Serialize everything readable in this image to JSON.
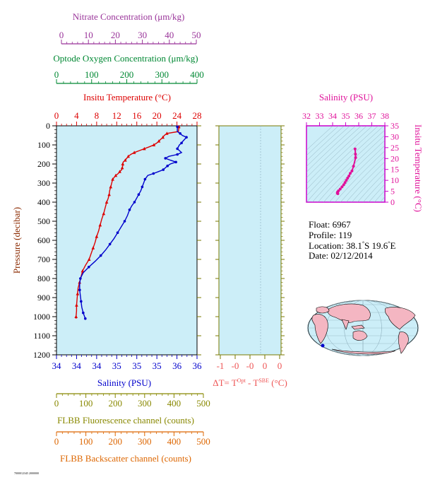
{
  "colors": {
    "nitrate": "#993399",
    "oxygen": "#008833",
    "temperature": "#dd0000",
    "salinity": "#0000cc",
    "ts": "#e0119a",
    "delta": "#ee5555",
    "fluorescence": "#888800",
    "backscatter": "#dd6600",
    "plot_bg": "#cceef8",
    "frame_olive": "#7a7a00"
  },
  "axes": {
    "nitrate": {
      "label": "Nitrate Concentration (μm/kg)",
      "ticks": [
        "0",
        "10",
        "20",
        "30",
        "40",
        "50"
      ],
      "range": [
        0,
        50
      ]
    },
    "oxygen": {
      "label": "Optode Oxygen Concentration (μm/kg)",
      "ticks": [
        "0",
        "100",
        "200",
        "300",
        "400"
      ],
      "range": [
        0,
        400
      ]
    },
    "temperature": {
      "label": "Insitu Temperature (°C)",
      "ticks": [
        "0",
        "4",
        "8",
        "12",
        "16",
        "20",
        "24",
        "28"
      ],
      "range": [
        0,
        28
      ]
    },
    "pressure": {
      "label": "Pressure (decibar)",
      "ticks": [
        "0",
        "100",
        "200",
        "300",
        "400",
        "500",
        "600",
        "700",
        "800",
        "900",
        "1000",
        "1100",
        "1200"
      ],
      "range": [
        0,
        1200
      ]
    },
    "salinity": {
      "label": "Salinity (PSU)",
      "ticks": [
        "34",
        "34",
        "34",
        "35",
        "35",
        "35",
        "36",
        "36"
      ],
      "range": [
        34,
        36
      ]
    },
    "delta": {
      "label_prefix": "ΔT= T",
      "label_sup1": "Opt",
      "label_mid": " - T",
      "label_sup2": "SBE",
      "label_suffix": " (°C)",
      "ticks": [
        "-1",
        "-0",
        "-0",
        "0",
        "0"
      ],
      "range": [
        -1,
        0.1
      ]
    },
    "fluorescence": {
      "label": "FLBB Fluorescence channel (counts)",
      "ticks": [
        "0",
        "100",
        "200",
        "300",
        "400",
        "500"
      ],
      "range": [
        0,
        500
      ]
    },
    "backscatter": {
      "label": "FLBB Backscatter channel (counts)",
      "ticks": [
        "0",
        "100",
        "200",
        "300",
        "400",
        "500"
      ],
      "range": [
        0,
        500
      ]
    },
    "ts_salinity": {
      "label": "Salinity (PSU)",
      "ticks": [
        "32",
        "33",
        "34",
        "35",
        "36",
        "37",
        "38"
      ],
      "range": [
        32,
        38
      ]
    },
    "ts_temperature": {
      "label": "Insitu Temperature (°C)",
      "ticks": [
        "0",
        "5",
        "10",
        "15",
        "20",
        "25",
        "30",
        "35"
      ],
      "range": [
        0,
        35
      ]
    }
  },
  "info": {
    "float": "Float:  6967",
    "profile": "Profile:  119",
    "location_prefix": "Location:  38.1",
    "location_mid": "S  19.6",
    "location_suffix": "E",
    "date": "Date:  02/12/2014"
  },
  "footer_code": "7000012345 2000000",
  "chart_data": [
    {
      "type": "line",
      "name": "temperature-profile",
      "x_unit": "°C",
      "y_unit": "decibar",
      "points": [
        [
          24.4,
          5
        ],
        [
          24.3,
          30
        ],
        [
          22.0,
          40
        ],
        [
          21.5,
          50
        ],
        [
          21.2,
          60
        ],
        [
          20.8,
          70
        ],
        [
          20.4,
          80
        ],
        [
          20.0,
          90
        ],
        [
          19.4,
          100
        ],
        [
          18.5,
          110
        ],
        [
          17.5,
          120
        ],
        [
          16.5,
          130
        ],
        [
          15.5,
          140
        ],
        [
          14.8,
          150
        ],
        [
          14.3,
          160
        ],
        [
          14.0,
          170
        ],
        [
          13.7,
          180
        ],
        [
          13.3,
          190
        ],
        [
          13.2,
          200
        ],
        [
          13.2,
          210
        ],
        [
          13.1,
          220
        ],
        [
          13.0,
          230
        ],
        [
          12.6,
          240
        ],
        [
          12.3,
          250
        ],
        [
          11.8,
          260
        ],
        [
          11.5,
          270
        ],
        [
          11.2,
          280
        ],
        [
          11.0,
          300
        ],
        [
          10.8,
          320
        ],
        [
          10.6,
          340
        ],
        [
          10.5,
          360
        ],
        [
          10.3,
          380
        ],
        [
          10.0,
          400
        ],
        [
          9.7,
          430
        ],
        [
          9.4,
          460
        ],
        [
          9.0,
          490
        ],
        [
          8.7,
          520
        ],
        [
          8.4,
          550
        ],
        [
          8.0,
          580
        ],
        [
          7.7,
          610
        ],
        [
          7.3,
          640
        ],
        [
          6.9,
          670
        ],
        [
          6.5,
          700
        ],
        [
          5.8,
          730
        ],
        [
          5.2,
          760
        ],
        [
          4.9,
          790
        ],
        [
          4.6,
          820
        ],
        [
          4.3,
          850
        ],
        [
          4.2,
          880
        ],
        [
          4.1,
          910
        ],
        [
          4.0,
          940
        ],
        [
          4.0,
          970
        ],
        [
          3.9,
          1000
        ],
        [
          3.9,
          1010
        ]
      ]
    },
    {
      "type": "line",
      "name": "salinity-profile",
      "x_unit": "PSU",
      "y_unit": "decibar",
      "points": [
        [
          35.72,
          5
        ],
        [
          35.72,
          30
        ],
        [
          35.76,
          40
        ],
        [
          35.79,
          50
        ],
        [
          35.85,
          60
        ],
        [
          35.8,
          80
        ],
        [
          35.78,
          90
        ],
        [
          35.75,
          100
        ],
        [
          35.72,
          120
        ],
        [
          35.78,
          140
        ],
        [
          35.72,
          150
        ],
        [
          35.6,
          160
        ],
        [
          35.55,
          170
        ],
        [
          35.62,
          180
        ],
        [
          35.7,
          190
        ],
        [
          35.62,
          200
        ],
        [
          35.58,
          210
        ],
        [
          35.55,
          220
        ],
        [
          35.52,
          230
        ],
        [
          35.45,
          240
        ],
        [
          35.38,
          250
        ],
        [
          35.3,
          260
        ],
        [
          35.26,
          280
        ],
        [
          35.24,
          300
        ],
        [
          35.22,
          320
        ],
        [
          35.2,
          340
        ],
        [
          35.17,
          360
        ],
        [
          35.14,
          380
        ],
        [
          35.11,
          400
        ],
        [
          35.07,
          420
        ],
        [
          35.04,
          440
        ],
        [
          35.01,
          470
        ],
        [
          34.97,
          500
        ],
        [
          34.92,
          530
        ],
        [
          34.87,
          560
        ],
        [
          34.82,
          590
        ],
        [
          34.76,
          620
        ],
        [
          34.7,
          650
        ],
        [
          34.63,
          680
        ],
        [
          34.55,
          710
        ],
        [
          34.46,
          740
        ],
        [
          34.38,
          770
        ],
        [
          34.34,
          800
        ],
        [
          34.33,
          830
        ],
        [
          34.33,
          860
        ],
        [
          34.34,
          890
        ],
        [
          34.35,
          920
        ],
        [
          34.36,
          950
        ],
        [
          34.38,
          980
        ],
        [
          34.4,
          1000
        ],
        [
          34.41,
          1010
        ]
      ]
    },
    {
      "type": "scatter",
      "name": "ts-diagram",
      "x_unit": "PSU",
      "y_unit": "°C",
      "points": [
        [
          35.72,
          24.4
        ],
        [
          35.75,
          22.0
        ],
        [
          35.76,
          20.4
        ],
        [
          35.6,
          16.5
        ],
        [
          35.48,
          14.3
        ],
        [
          35.35,
          13.2
        ],
        [
          35.25,
          12.0
        ],
        [
          35.15,
          11.0
        ],
        [
          35.05,
          10.0
        ],
        [
          34.95,
          9.0
        ],
        [
          34.85,
          8.0
        ],
        [
          34.72,
          7.0
        ],
        [
          34.58,
          6.0
        ],
        [
          34.45,
          5.2
        ],
        [
          34.38,
          4.6
        ],
        [
          34.36,
          4.2
        ],
        [
          34.38,
          4.0
        ],
        [
          34.4,
          3.9
        ]
      ]
    },
    {
      "type": "map",
      "name": "float-location",
      "lat": -38.1,
      "lon": 19.6
    }
  ]
}
